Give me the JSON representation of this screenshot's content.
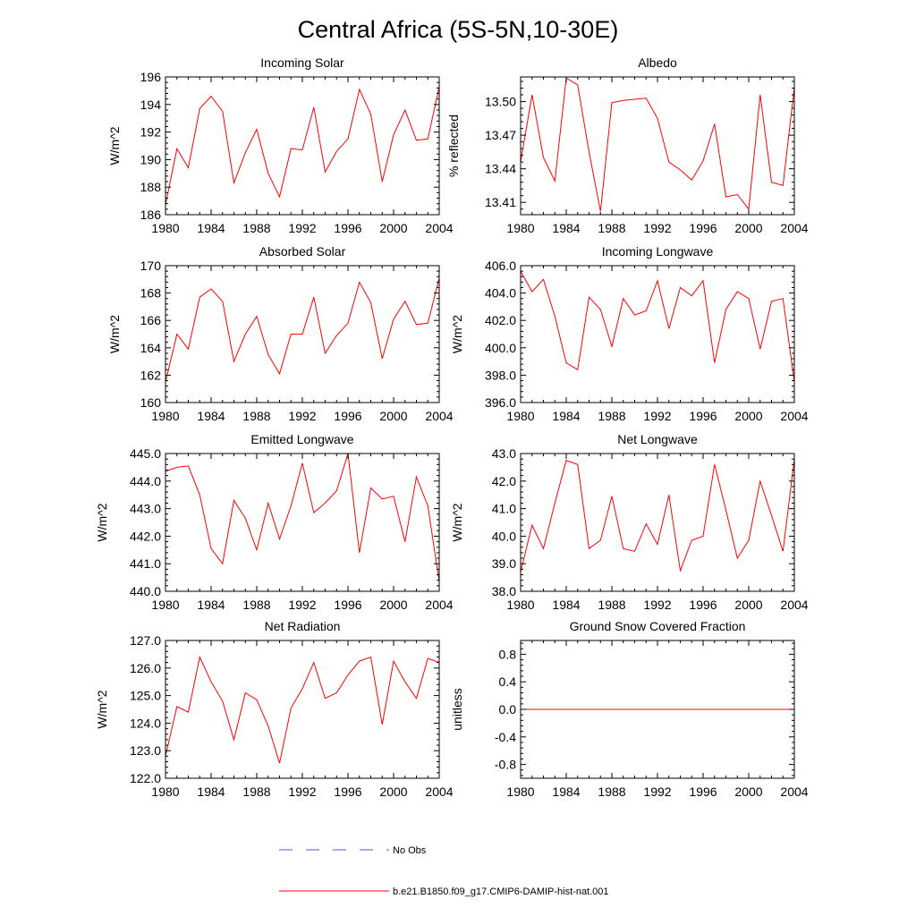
{
  "title": "Central Africa (5S-5N,10-30E)",
  "legend": [
    {
      "label": "No Obs",
      "color": "#5555cc",
      "dash": true
    },
    {
      "label": "b.e21.B1850.f09_g17.CMIP6-DAMIP-hist-nat.001",
      "color": "#ff0000",
      "dash": false
    }
  ],
  "chart_data": [
    {
      "type": "line",
      "title": "Incoming Solar",
      "ylabel": "W/m^2",
      "xlim": [
        1980,
        2004
      ],
      "ylim": [
        186,
        196
      ],
      "xticks": [
        1980,
        1984,
        1988,
        1992,
        1996,
        2000,
        2004
      ],
      "yticks": [
        186,
        188,
        190,
        192,
        194,
        196
      ],
      "ydec": 0,
      "series": [
        {
          "color": "#ff0000",
          "x": [
            1980,
            1981,
            1982,
            1983,
            1984,
            1985,
            1986,
            1987,
            1988,
            1989,
            1990,
            1991,
            1992,
            1993,
            1994,
            1995,
            1996,
            1997,
            1998,
            1999,
            2000,
            2001,
            2002,
            2003,
            2004
          ],
          "y": [
            186.7,
            190.8,
            189.4,
            193.7,
            194.6,
            193.5,
            188.3,
            190.5,
            192.2,
            189.0,
            187.3,
            190.8,
            190.7,
            193.8,
            189.1,
            190.6,
            191.5,
            195.1,
            193.3,
            188.4,
            191.8,
            193.6,
            191.4,
            191.5,
            195.3
          ]
        }
      ]
    },
    {
      "type": "line",
      "title": "Albedo",
      "ylabel": "% reflected",
      "xlim": [
        1980,
        2004
      ],
      "ylim": [
        13.399,
        13.522
      ],
      "xticks": [
        1980,
        1984,
        1988,
        1992,
        1996,
        2000,
        2004
      ],
      "yticks": [
        13.41,
        13.44,
        13.47,
        13.5
      ],
      "ydec": 2,
      "series": [
        {
          "color": "#ff0000",
          "x": [
            1980,
            1981,
            1982,
            1983,
            1984,
            1985,
            1986,
            1987,
            1988,
            1989,
            1990,
            1991,
            1992,
            1993,
            1994,
            1995,
            1996,
            1997,
            1998,
            1999,
            2000,
            2001,
            2002,
            2003,
            2004
          ],
          "y": [
            13.446,
            13.506,
            13.45,
            13.429,
            13.521,
            13.515,
            13.455,
            13.402,
            13.499,
            13.501,
            13.502,
            13.503,
            13.485,
            13.446,
            13.439,
            13.43,
            13.447,
            13.48,
            13.415,
            13.417,
            13.404,
            13.506,
            13.428,
            13.425,
            13.513
          ]
        }
      ]
    },
    {
      "type": "line",
      "title": "Absorbed Solar",
      "ylabel": "W/m^2",
      "xlim": [
        1980,
        2004
      ],
      "ylim": [
        160,
        170
      ],
      "xticks": [
        1980,
        1984,
        1988,
        1992,
        1996,
        2000,
        2004
      ],
      "yticks": [
        160,
        162,
        164,
        166,
        168,
        170
      ],
      "ydec": 0,
      "series": [
        {
          "color": "#ff0000",
          "x": [
            1980,
            1981,
            1982,
            1983,
            1984,
            1985,
            1986,
            1987,
            1988,
            1989,
            1990,
            1991,
            1992,
            1993,
            1994,
            1995,
            1996,
            1997,
            1998,
            1999,
            2000,
            2001,
            2002,
            2003,
            2004
          ],
          "y": [
            161.5,
            165.0,
            163.9,
            167.7,
            168.3,
            167.4,
            163.0,
            165.0,
            166.3,
            163.5,
            162.1,
            165.0,
            165.0,
            167.7,
            163.6,
            164.9,
            165.8,
            168.8,
            167.3,
            163.2,
            166.1,
            167.4,
            165.7,
            165.8,
            169.1
          ]
        }
      ]
    },
    {
      "type": "line",
      "title": "Incoming Longwave",
      "ylabel": "W/m^2",
      "xlim": [
        1980,
        2004
      ],
      "ylim": [
        396,
        406
      ],
      "xticks": [
        1980,
        1984,
        1988,
        1992,
        1996,
        2000,
        2004
      ],
      "yticks": [
        396,
        398,
        400,
        402,
        404,
        406
      ],
      "ydec": 1,
      "series": [
        {
          "color": "#ff0000",
          "x": [
            1980,
            1981,
            1982,
            1983,
            1984,
            1985,
            1986,
            1987,
            1988,
            1989,
            1990,
            1991,
            1992,
            1993,
            1994,
            1995,
            1996,
            1997,
            1998,
            1999,
            2000,
            2001,
            2002,
            2003,
            2004
          ],
          "y": [
            405.6,
            404.1,
            405.0,
            402.3,
            398.9,
            398.4,
            403.7,
            402.8,
            400.1,
            403.6,
            402.4,
            402.7,
            404.9,
            401.4,
            404.4,
            403.8,
            404.9,
            398.9,
            402.8,
            404.1,
            403.6,
            399.9,
            403.4,
            403.6,
            397.5
          ]
        }
      ]
    },
    {
      "type": "line",
      "title": "Emitted Longwave",
      "ylabel": "W/m^2",
      "xlim": [
        1980,
        2004
      ],
      "ylim": [
        440,
        445
      ],
      "xticks": [
        1980,
        1984,
        1988,
        1992,
        1996,
        2000,
        2004
      ],
      "yticks": [
        440,
        441,
        442,
        443,
        444,
        445
      ],
      "ydec": 1,
      "series": [
        {
          "color": "#ff0000",
          "x": [
            1980,
            1981,
            1982,
            1983,
            1984,
            1985,
            1986,
            1987,
            1988,
            1989,
            1990,
            1991,
            1992,
            1993,
            1994,
            1995,
            1996,
            1997,
            1998,
            1999,
            2000,
            2001,
            2002,
            2003,
            2004
          ],
          "y": [
            444.35,
            444.5,
            444.55,
            443.5,
            441.55,
            441.0,
            443.3,
            442.65,
            441.5,
            443.2,
            441.9,
            443.1,
            444.65,
            442.85,
            443.2,
            443.65,
            445.0,
            441.4,
            443.75,
            443.35,
            443.45,
            441.8,
            444.15,
            443.1,
            440.35
          ]
        }
      ]
    },
    {
      "type": "line",
      "title": "Net Longwave",
      "ylabel": "W/m^2",
      "xlim": [
        1980,
        2004
      ],
      "ylim": [
        38,
        43
      ],
      "xticks": [
        1980,
        1984,
        1988,
        1992,
        1996,
        2000,
        2004
      ],
      "yticks": [
        38,
        39,
        40,
        41,
        42,
        43
      ],
      "ydec": 1,
      "series": [
        {
          "color": "#ff0000",
          "x": [
            1980,
            1981,
            1982,
            1983,
            1984,
            1985,
            1986,
            1987,
            1988,
            1989,
            1990,
            1991,
            1992,
            1993,
            1994,
            1995,
            1996,
            1997,
            1998,
            1999,
            2000,
            2001,
            2002,
            2003,
            2004
          ],
          "y": [
            38.7,
            40.4,
            39.55,
            41.2,
            42.75,
            42.6,
            39.55,
            39.85,
            41.45,
            39.55,
            39.45,
            40.45,
            39.7,
            41.5,
            38.75,
            39.85,
            40.0,
            42.6,
            40.95,
            39.2,
            39.85,
            42.0,
            40.75,
            39.45,
            42.8
          ]
        }
      ]
    },
    {
      "type": "line",
      "title": "Net Radiation",
      "ylabel": "W/m^2",
      "xlim": [
        1980,
        2004
      ],
      "ylim": [
        122,
        127
      ],
      "xticks": [
        1980,
        1984,
        1988,
        1992,
        1996,
        2000,
        2004
      ],
      "yticks": [
        122,
        123,
        124,
        125,
        126,
        127
      ],
      "ydec": 1,
      "series": [
        {
          "color": "#ff0000",
          "x": [
            1980,
            1981,
            1982,
            1983,
            1984,
            1985,
            1986,
            1987,
            1988,
            1989,
            1990,
            1991,
            1992,
            1993,
            1994,
            1995,
            1996,
            1997,
            1998,
            1999,
            2000,
            2001,
            2002,
            2003,
            2004
          ],
          "y": [
            122.8,
            124.6,
            124.4,
            126.4,
            125.5,
            124.8,
            123.4,
            125.1,
            124.85,
            123.9,
            122.55,
            124.55,
            125.25,
            126.2,
            124.9,
            125.1,
            125.75,
            126.25,
            126.4,
            123.95,
            126.25,
            125.5,
            124.9,
            126.35,
            126.2
          ]
        }
      ]
    },
    {
      "type": "line",
      "title": "Ground Snow Covered Fraction",
      "ylabel": "unitless",
      "xlim": [
        1980,
        2004
      ],
      "ylim": [
        -1.0,
        1.0
      ],
      "xticks": [
        1980,
        1984,
        1988,
        1992,
        1996,
        2000,
        2004
      ],
      "yticks": [
        -0.8,
        -0.4,
        0.0,
        0.4,
        0.8
      ],
      "ydec": 1,
      "series": [
        {
          "color": "#ff0000",
          "x": [
            1980,
            2004
          ],
          "y": [
            0.0,
            0.0
          ]
        }
      ]
    }
  ]
}
